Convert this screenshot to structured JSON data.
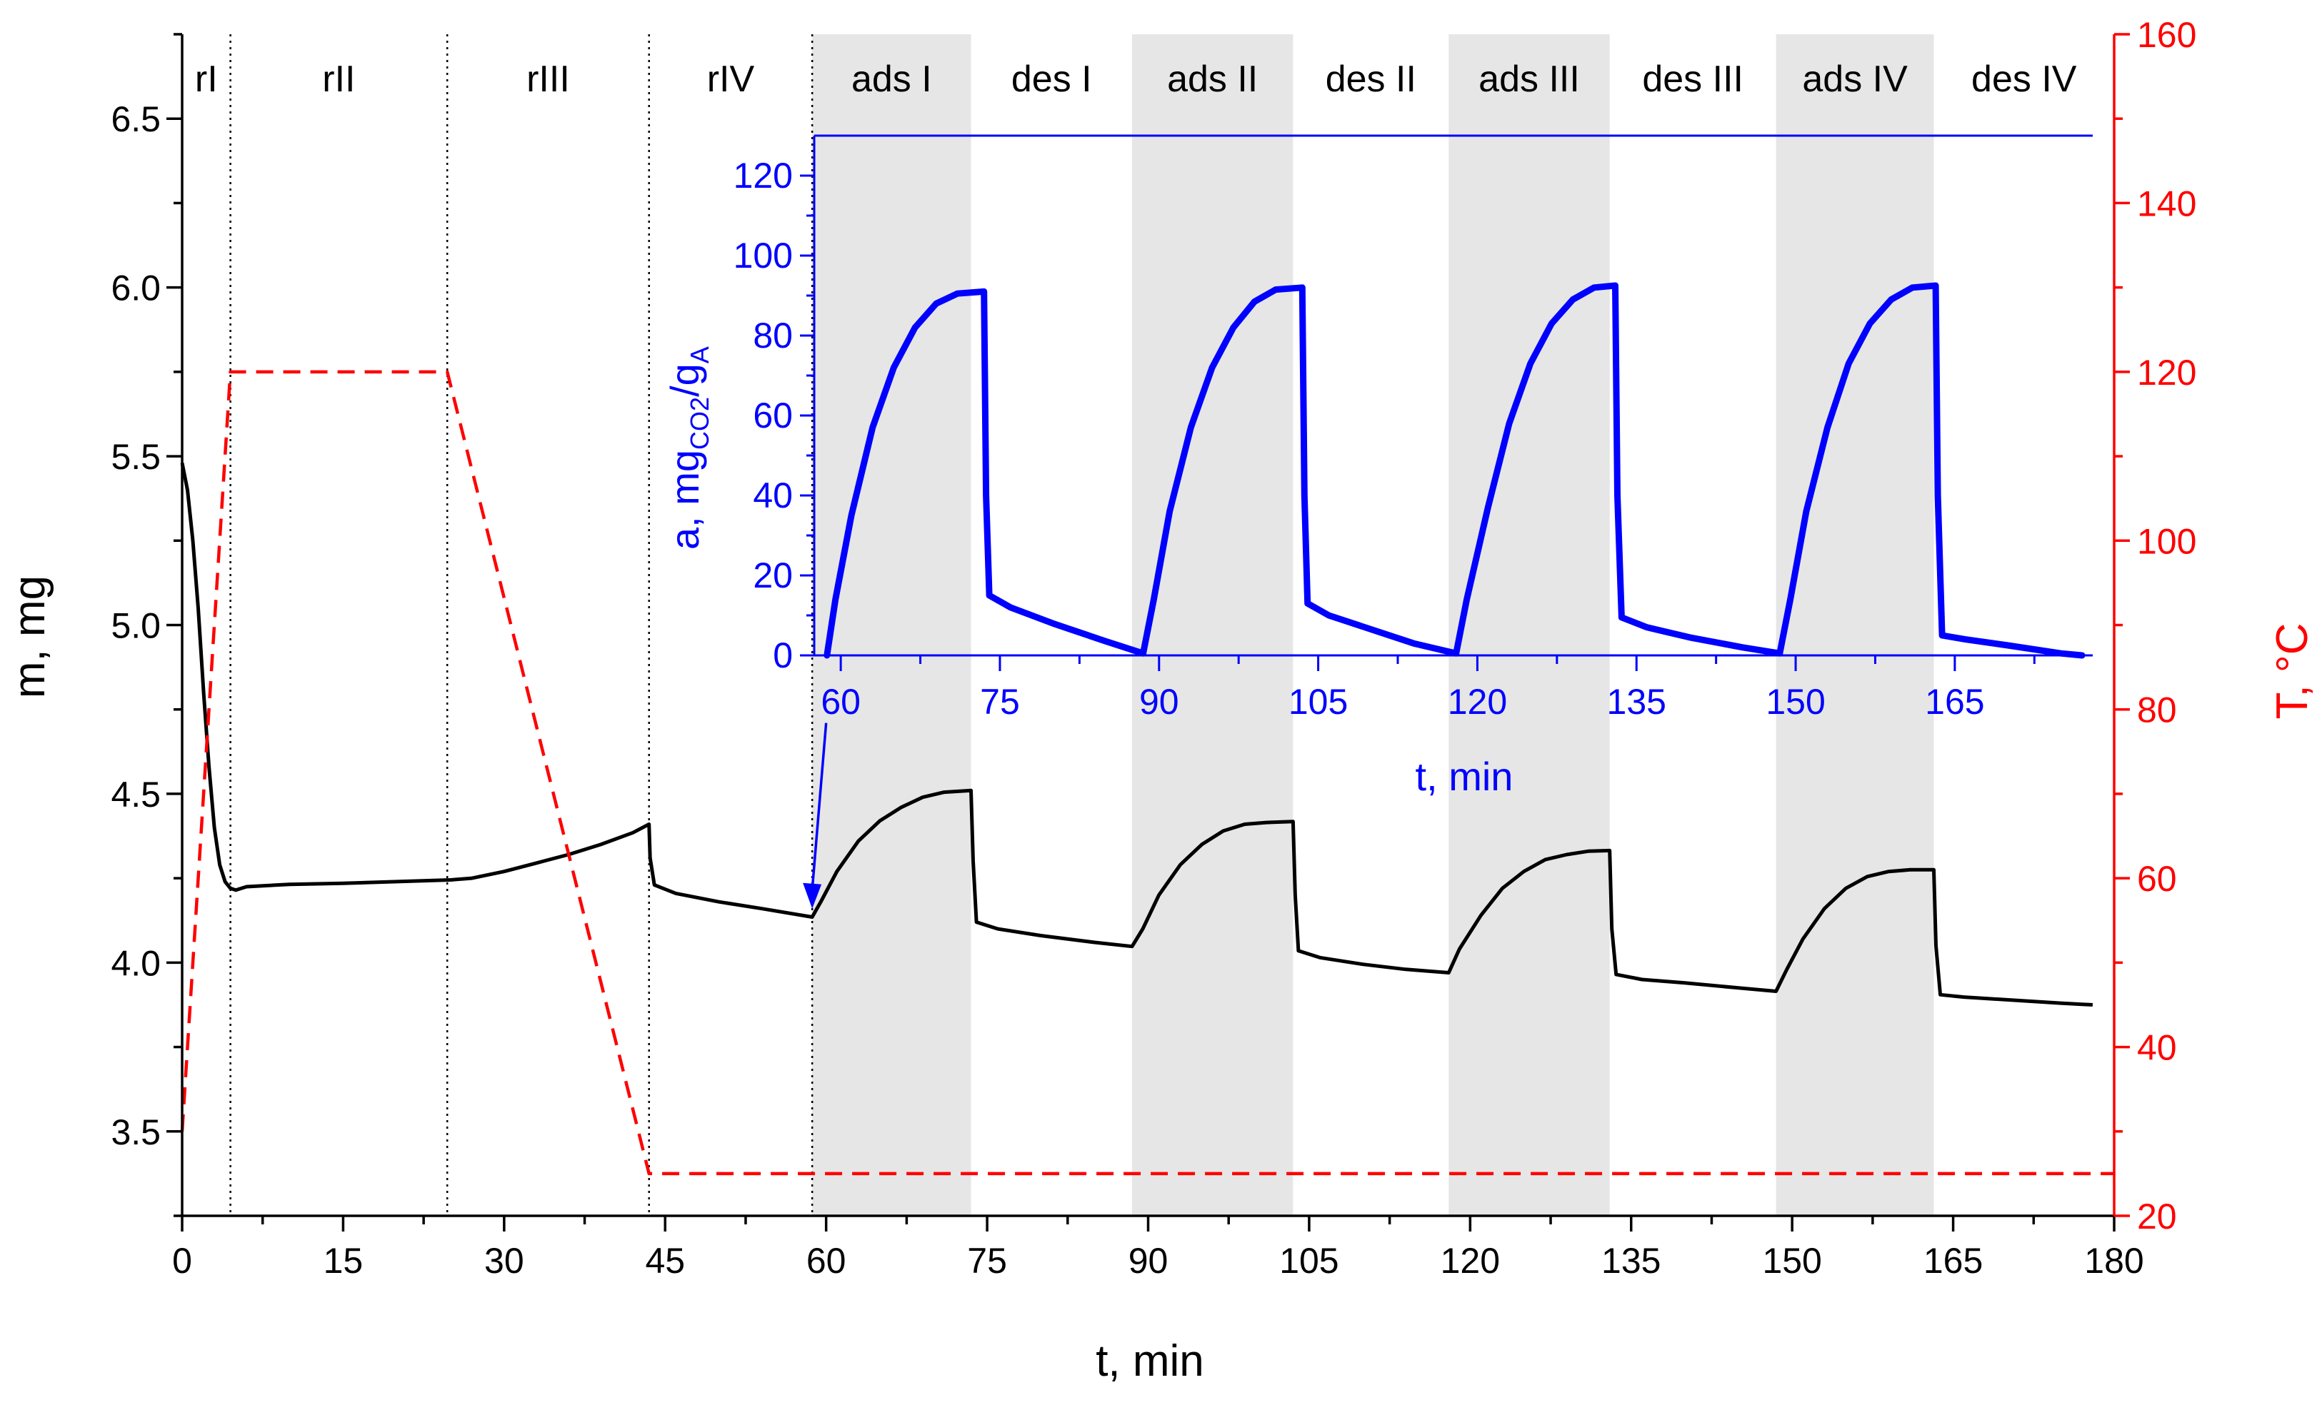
{
  "chart_data": {
    "type": "line",
    "title": "",
    "colors": {
      "mass": "#000000",
      "temperature": "#ff0000",
      "inset": "#0000ff",
      "shade": "#e6e6e6",
      "divider": "#000000"
    },
    "main": {
      "xlabel": "t, min",
      "ylabel_left": "m, mg",
      "ylabel_right": "T, °C",
      "xlim": [
        0,
        180
      ],
      "ylim_left": [
        3.25,
        6.75
      ],
      "ylim_right": [
        20,
        160
      ],
      "x_ticks": [
        0,
        15,
        30,
        45,
        60,
        75,
        90,
        105,
        120,
        135,
        150,
        165,
        180
      ],
      "y_ticks_left": [
        3.5,
        4.0,
        4.5,
        5.0,
        5.5,
        6.0,
        6.5
      ],
      "y_ticks_right": [
        20,
        40,
        60,
        80,
        100,
        120,
        140,
        160
      ],
      "tick_labels_left": [
        "3.5",
        "4.0",
        "4.5",
        "5.0",
        "5.5",
        "6.0",
        "6.5"
      ],
      "regions": [
        {
          "label": "rI",
          "start": 0,
          "end": 4.5,
          "shaded": false
        },
        {
          "label": "rII",
          "start": 4.5,
          "end": 24.7,
          "shaded": false
        },
        {
          "label": "rIII",
          "start": 24.7,
          "end": 43.5,
          "shaded": false
        },
        {
          "label": "rIV",
          "start": 43.5,
          "end": 58.7,
          "shaded": false
        },
        {
          "label": "ads I",
          "start": 58.7,
          "end": 73.5,
          "shaded": true
        },
        {
          "label": "des I",
          "start": 73.5,
          "end": 88.5,
          "shaded": false
        },
        {
          "label": "ads II",
          "start": 88.5,
          "end": 103.5,
          "shaded": true
        },
        {
          "label": "des II",
          "start": 103.5,
          "end": 118,
          "shaded": false
        },
        {
          "label": "ads III",
          "start": 118,
          "end": 133,
          "shaded": true
        },
        {
          "label": "des III",
          "start": 133,
          "end": 148.5,
          "shaded": false
        },
        {
          "label": "ads IV",
          "start": 148.5,
          "end": 163.2,
          "shaded": true
        },
        {
          "label": "des IV",
          "start": 163.2,
          "end": 180,
          "shaded": false
        }
      ],
      "dividers": [
        4.5,
        24.7,
        43.5,
        58.7
      ],
      "series": [
        {
          "name": "mass",
          "axis": "left",
          "style": "solid",
          "points": [
            [
              0,
              5.48
            ],
            [
              0.5,
              5.4
            ],
            [
              1,
              5.25
            ],
            [
              1.5,
              5.05
            ],
            [
              2,
              4.8
            ],
            [
              2.5,
              4.58
            ],
            [
              3,
              4.4
            ],
            [
              3.5,
              4.29
            ],
            [
              4,
              4.24
            ],
            [
              4.5,
              4.22
            ],
            [
              5,
              4.215
            ],
            [
              6,
              4.225
            ],
            [
              10,
              4.232
            ],
            [
              15,
              4.235
            ],
            [
              20,
              4.24
            ],
            [
              25,
              4.245
            ],
            [
              27,
              4.25
            ],
            [
              30,
              4.27
            ],
            [
              33,
              4.295
            ],
            [
              36,
              4.32
            ],
            [
              39,
              4.35
            ],
            [
              42,
              4.385
            ],
            [
              43.5,
              4.41
            ],
            [
              43.6,
              4.31
            ],
            [
              44,
              4.23
            ],
            [
              46,
              4.205
            ],
            [
              50,
              4.18
            ],
            [
              54,
              4.16
            ],
            [
              58.7,
              4.135
            ],
            [
              59.5,
              4.18
            ],
            [
              61,
              4.27
            ],
            [
              63,
              4.36
            ],
            [
              65,
              4.42
            ],
            [
              67,
              4.46
            ],
            [
              69,
              4.49
            ],
            [
              71,
              4.505
            ],
            [
              73.5,
              4.51
            ],
            [
              73.7,
              4.3
            ],
            [
              74,
              4.12
            ],
            [
              76,
              4.1
            ],
            [
              80,
              4.08
            ],
            [
              85,
              4.06
            ],
            [
              88.5,
              4.048
            ],
            [
              89.5,
              4.1
            ],
            [
              91,
              4.2
            ],
            [
              93,
              4.29
            ],
            [
              95,
              4.35
            ],
            [
              97,
              4.39
            ],
            [
              99,
              4.41
            ],
            [
              101,
              4.415
            ],
            [
              103.5,
              4.418
            ],
            [
              103.7,
              4.2
            ],
            [
              104,
              4.035
            ],
            [
              106,
              4.015
            ],
            [
              110,
              3.995
            ],
            [
              114,
              3.98
            ],
            [
              118,
              3.97
            ],
            [
              119,
              4.04
            ],
            [
              121,
              4.14
            ],
            [
              123,
              4.22
            ],
            [
              125,
              4.27
            ],
            [
              127,
              4.305
            ],
            [
              129,
              4.32
            ],
            [
              131,
              4.33
            ],
            [
              133,
              4.332
            ],
            [
              133.2,
              4.1
            ],
            [
              133.6,
              3.965
            ],
            [
              136,
              3.95
            ],
            [
              140,
              3.94
            ],
            [
              145,
              3.925
            ],
            [
              148.5,
              3.915
            ],
            [
              149.5,
              3.98
            ],
            [
              151,
              4.07
            ],
            [
              153,
              4.16
            ],
            [
              155,
              4.22
            ],
            [
              157,
              4.255
            ],
            [
              159,
              4.27
            ],
            [
              161,
              4.275
            ],
            [
              163.2,
              4.275
            ],
            [
              163.4,
              4.05
            ],
            [
              163.8,
              3.905
            ],
            [
              166,
              3.898
            ],
            [
              170,
              3.89
            ],
            [
              175,
              3.88
            ],
            [
              178,
              3.875
            ]
          ]
        },
        {
          "name": "temperature",
          "axis": "right",
          "style": "dashed",
          "points": [
            [
              0,
              30
            ],
            [
              4.5,
              120
            ],
            [
              24.7,
              120
            ],
            [
              43.5,
              25
            ],
            [
              180,
              25
            ]
          ]
        }
      ],
      "annotation_arrow": {
        "from": [
          60,
          4.71
        ],
        "to": [
          58.7,
          4.16
        ]
      }
    },
    "inset": {
      "xlabel": "t, min",
      "ylabel": "a, mgCO2/gA",
      "ylabel_parts": {
        "prefix": "a, mg",
        "sub1": "CO2",
        "mid": "/g",
        "sub2": "A"
      },
      "xlim": [
        57.5,
        178
      ],
      "ylim": [
        0,
        130
      ],
      "x_ticks": [
        60,
        75,
        90,
        105,
        120,
        135,
        150,
        165
      ],
      "y_ticks": [
        0,
        20,
        40,
        60,
        80,
        100,
        120
      ],
      "points": [
        [
          58.7,
          0
        ],
        [
          59.5,
          14
        ],
        [
          61,
          35
        ],
        [
          63,
          57
        ],
        [
          65,
          72
        ],
        [
          67,
          82
        ],
        [
          69,
          88
        ],
        [
          71,
          90.5
        ],
        [
          73.5,
          91
        ],
        [
          73.7,
          40
        ],
        [
          74,
          15
        ],
        [
          76,
          12
        ],
        [
          80,
          8
        ],
        [
          85,
          3.5
        ],
        [
          88.5,
          0.5
        ],
        [
          89.5,
          14
        ],
        [
          91,
          36
        ],
        [
          93,
          57
        ],
        [
          95,
          72
        ],
        [
          97,
          82
        ],
        [
          99,
          88.5
        ],
        [
          101,
          91.5
        ],
        [
          103.5,
          92
        ],
        [
          103.7,
          40
        ],
        [
          104,
          13
        ],
        [
          106,
          10
        ],
        [
          110,
          6.5
        ],
        [
          114,
          3
        ],
        [
          118,
          0.5
        ],
        [
          119,
          14
        ],
        [
          121,
          37
        ],
        [
          123,
          58
        ],
        [
          125,
          73
        ],
        [
          127,
          83
        ],
        [
          129,
          89
        ],
        [
          131,
          92
        ],
        [
          133,
          92.5
        ],
        [
          133.2,
          40
        ],
        [
          133.6,
          9.5
        ],
        [
          136,
          7
        ],
        [
          140,
          4.5
        ],
        [
          145,
          2
        ],
        [
          148.5,
          0.5
        ],
        [
          149.5,
          14
        ],
        [
          151,
          36
        ],
        [
          153,
          57
        ],
        [
          155,
          73
        ],
        [
          157,
          83
        ],
        [
          159,
          89
        ],
        [
          161,
          92
        ],
        [
          163.2,
          92.5
        ],
        [
          163.4,
          40
        ],
        [
          163.8,
          5
        ],
        [
          166,
          4
        ],
        [
          170,
          2.5
        ],
        [
          175,
          0.5
        ],
        [
          177,
          0
        ]
      ]
    }
  }
}
